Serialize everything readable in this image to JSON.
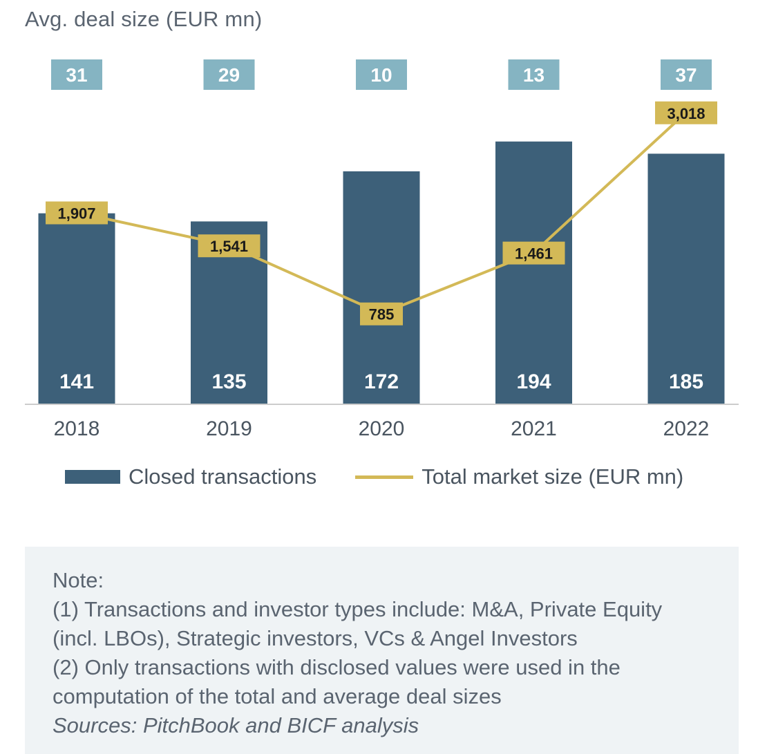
{
  "header": {
    "avg_label": "Avg. deal size (EUR mn)"
  },
  "chart_data": {
    "type": "bar",
    "categories": [
      "2018",
      "2019",
      "2020",
      "2021",
      "2022"
    ],
    "series": [
      {
        "name": "Closed transactions",
        "type": "bar",
        "values": [
          141,
          135,
          172,
          194,
          185
        ],
        "color": "#3d6079"
      },
      {
        "name": "Total market size (EUR mn)",
        "type": "line",
        "values": [
          1907,
          1541,
          785,
          1461,
          3018
        ],
        "color": "#d3b957"
      }
    ],
    "avg_deal_size": [
      31,
      29,
      10,
      13,
      37
    ],
    "value_labels": {
      "bars": [
        "141",
        "135",
        "172",
        "194",
        "185"
      ],
      "line": [
        "1,907",
        "1,541",
        "785",
        "1,461",
        "3,018"
      ],
      "avg": [
        "31",
        "29",
        "10",
        "13",
        "37"
      ]
    },
    "colors": {
      "bar": "#3d6079",
      "line": "#d3b957",
      "avg_box": "#85b4c2",
      "axis": "#cccccc"
    },
    "legend_position": "bottom"
  },
  "legend": {
    "bar_label": "Closed transactions",
    "line_label": "Total market size (EUR mn)"
  },
  "notes": {
    "title": "Note:",
    "lines": [
      "(1) Transactions and investor types include: M&A, Private Equity",
      "(incl. LBOs), Strategic investors, VCs & Angel Investors",
      "(2) Only transactions with disclosed values were used in the",
      "computation of the total and average deal sizes"
    ],
    "source": "Sources: PitchBook and BICF analysis"
  }
}
